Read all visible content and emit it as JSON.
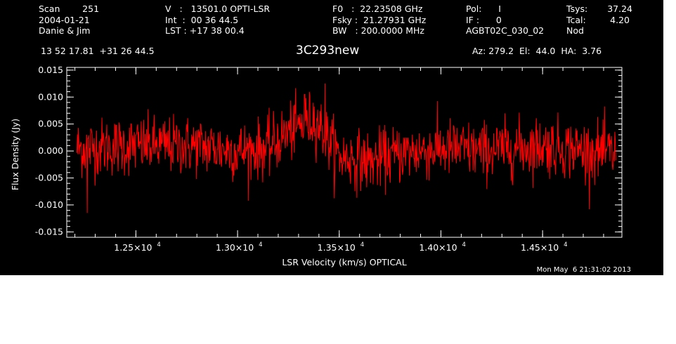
{
  "header": {
    "col1": [
      "Scan        251",
      "2004-01-21",
      "Danie & Jim"
    ],
    "col2": [
      "V   :   13501.0 OPTI-LSR",
      "Int  :  00 36 44.5",
      "LST : +17 38 00.4"
    ],
    "col3": [
      "F0   :  22.23508 GHz",
      "Fsky :  21.27931 GHz",
      "BW   : 200.0000 MHz"
    ],
    "col4": [
      "Pol:      I",
      "IF :      0",
      "AGBT02C_030_02"
    ],
    "col5": [
      "Tsys:",
      "Tcal:",
      "Nod"
    ],
    "col5_values": [
      "37.24",
      "4.20",
      ""
    ],
    "coords": "13 52 17.81  +31 26 44.5",
    "source": "3C293new",
    "azel": "Az: 279.2  El:  44.0  HA:  3.76",
    "footer_date": "Mon May  6 21:31:02 2013"
  },
  "colors": {
    "background": "#000000",
    "foreground": "#ffffff",
    "series": "#ff0000"
  },
  "chart_data": {
    "type": "line",
    "title": "3C293new",
    "xlabel": "LSR Velocity (km/s) OPTICAL",
    "ylabel": "Flux Density (Jy)",
    "xlim": [
      12160,
      14890
    ],
    "ylim": [
      -0.016,
      0.0155
    ],
    "x_ticks": [
      12500,
      13000,
      13500,
      14000,
      14500
    ],
    "x_tick_labels": [
      "1.25×10",
      "1.30×10",
      "1.35×10",
      "1.40×10",
      "1.45×10"
    ],
    "x_tick_exponent": "4",
    "y_ticks": [
      -0.015,
      -0.01,
      -0.005,
      0.0,
      0.005,
      0.01,
      0.015
    ],
    "y_tick_labels": [
      "-0.015",
      "-0.010",
      "-0.005",
      "0.000",
      "0.005",
      "0.010",
      "0.015"
    ],
    "grid": false,
    "series": [
      {
        "x_range": [
          12210,
          14860
        ],
        "n_channels": 1100,
        "noise_rms": 0.0027,
        "baseline": [
          [
            12210,
            0.0005
          ],
          [
            12500,
            0.001
          ],
          [
            12800,
            0.001
          ],
          [
            13000,
            0.0
          ],
          [
            13150,
            0.0005
          ],
          [
            13250,
            0.0035
          ],
          [
            13330,
            0.005
          ],
          [
            13380,
            0.006
          ],
          [
            13430,
            0.003
          ],
          [
            13500,
            -0.001
          ],
          [
            13650,
            -0.002
          ],
          [
            13800,
            -0.0005
          ],
          [
            14000,
            0.0005
          ],
          [
            14200,
            0.0
          ],
          [
            14500,
            0.001
          ],
          [
            14860,
            -0.0005
          ]
        ],
        "peaks": [
          [
            12260,
            -0.0115
          ],
          [
            13430,
            0.0125
          ],
          [
            13330,
            0.0105
          ]
        ]
      }
    ]
  }
}
